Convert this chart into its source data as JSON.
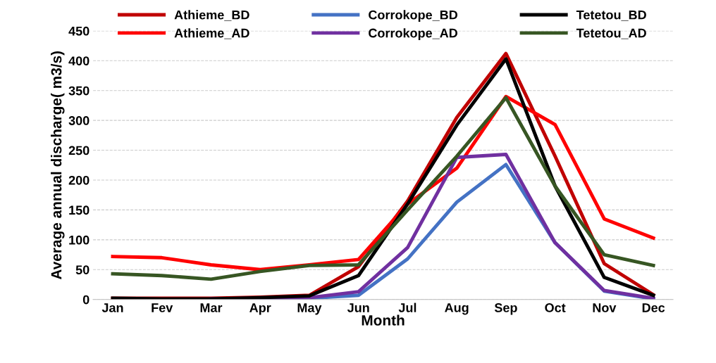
{
  "chart_data": {
    "type": "line",
    "xlabel": "Month",
    "ylabel": "Average annual discharge( m3/s)",
    "categories": [
      "Jan",
      "Fev",
      "Mar",
      "Apr",
      "May",
      "Jun",
      "Jul",
      "Aug",
      "Sep",
      "Oct",
      "Nov",
      "Dec"
    ],
    "series": [
      {
        "name": "Athieme_BD",
        "color": "#c00000",
        "values": [
          2,
          2,
          2,
          4,
          7,
          55,
          165,
          305,
          412,
          240,
          60,
          8
        ]
      },
      {
        "name": "Athieme_AD",
        "color": "#ff0000",
        "values": [
          72,
          70,
          58,
          50,
          58,
          67,
          160,
          220,
          340,
          293,
          135,
          103
        ]
      },
      {
        "name": "Corrokope_BD",
        "color": "#4472c4",
        "values": [
          null,
          null,
          null,
          1,
          2,
          7,
          68,
          163,
          226,
          95,
          14,
          1
        ]
      },
      {
        "name": "Corrokope_AD",
        "color": "#7030a0",
        "values": [
          null,
          null,
          1,
          2,
          3,
          13,
          87,
          238,
          243,
          95,
          15,
          2
        ]
      },
      {
        "name": "Tetetou_BD",
        "color": "#000000",
        "values": [
          2,
          1,
          1,
          3,
          6,
          40,
          160,
          292,
          403,
          190,
          37,
          7
        ]
      },
      {
        "name": "Tetetou_AD",
        "color": "#375623",
        "values": [
          43,
          40,
          34,
          47,
          57,
          58,
          150,
          240,
          338,
          190,
          75,
          57
        ]
      }
    ],
    "ylim": [
      0,
      450
    ],
    "yticks": [
      0,
      50,
      100,
      150,
      200,
      250,
      300,
      350,
      400,
      450
    ],
    "grid": "y",
    "legend": "top",
    "marker": "none",
    "line_style": "solid"
  }
}
